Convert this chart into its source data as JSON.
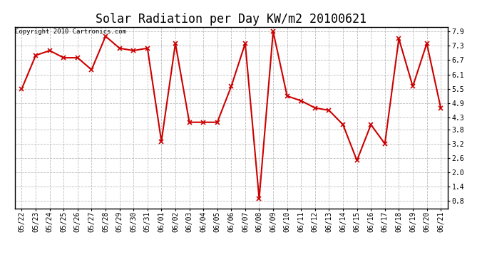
{
  "title": "Solar Radiation per Day KW/m2 20100621",
  "copyright": "Copyright 2010 Cartronics.com",
  "dates": [
    "05/22",
    "05/23",
    "05/24",
    "05/25",
    "05/26",
    "05/27",
    "05/28",
    "05/29",
    "05/30",
    "05/31",
    "06/01",
    "06/02",
    "06/03",
    "06/04",
    "06/05",
    "06/06",
    "06/07",
    "06/08",
    "06/09",
    "06/10",
    "06/11",
    "06/12",
    "06/13",
    "06/14",
    "06/15",
    "06/16",
    "06/17",
    "06/18",
    "06/19",
    "06/20",
    "06/21"
  ],
  "values": [
    5.5,
    6.9,
    7.1,
    6.8,
    6.8,
    6.3,
    7.7,
    7.2,
    7.1,
    7.2,
    3.3,
    7.4,
    4.1,
    4.1,
    4.1,
    5.6,
    7.4,
    0.9,
    7.9,
    5.2,
    5.0,
    4.7,
    4.6,
    4.0,
    2.5,
    4.0,
    3.2,
    7.6,
    5.6,
    7.4,
    4.7
  ],
  "line_color": "#cc0000",
  "marker": "x",
  "marker_size": 4,
  "marker_linewidth": 1.2,
  "bg_color": "#ffffff",
  "plot_bg_color": "#ffffff",
  "grid_color": "#bbbbbb",
  "grid_style": "--",
  "yticks": [
    0.8,
    1.4,
    2.0,
    2.6,
    3.2,
    3.8,
    4.3,
    4.9,
    5.5,
    6.1,
    6.7,
    7.3,
    7.9
  ],
  "ylim": [
    0.5,
    8.1
  ],
  "title_fontsize": 12,
  "copyright_fontsize": 6.5,
  "tick_fontsize": 7,
  "border_color": "#000000",
  "linewidth": 1.5
}
